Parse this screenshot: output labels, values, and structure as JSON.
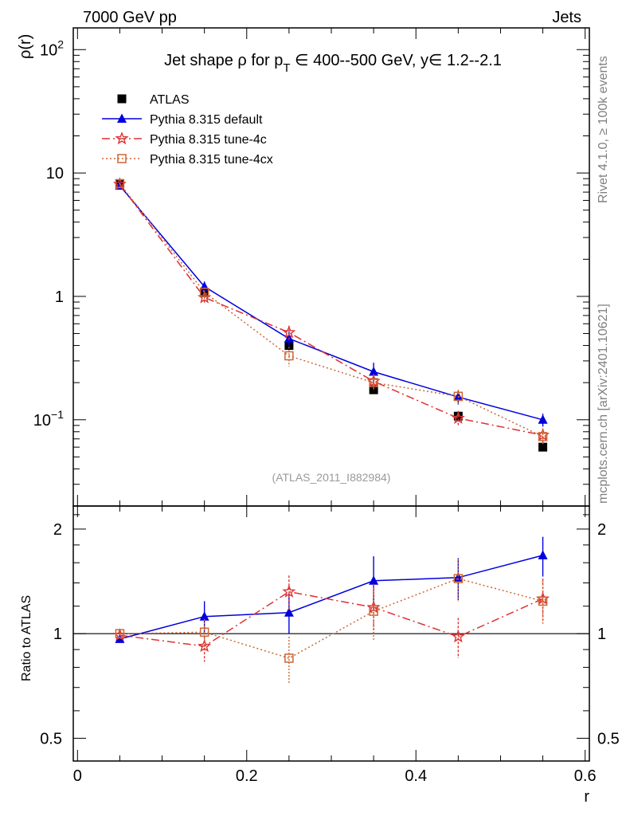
{
  "header": {
    "left": "7000 GeV pp",
    "right": "Jets"
  },
  "title": {
    "prefix": "Jet shape ρ for p",
    "sub": "T",
    "suffix": " ∈ 400--500 GeV, y∈ 1.2--2.1"
  },
  "side_labels": {
    "rivet": "Rivet 4.1.0, ≥ 100k events",
    "mcplots": "mcplots.cern.ch [arXiv:2401.10621]"
  },
  "analysis_ref": "(ATLAS_2011_I882984)",
  "colors": {
    "atlas": "#000000",
    "default": "#0000dd",
    "tune4c": "#dd3333",
    "tune4cx": "#cc6633"
  },
  "chart_data": [
    {
      "panel": "main",
      "type": "line",
      "scale": "log",
      "ylabel": "ρ(r)",
      "ylim": [
        0.02,
        150
      ],
      "yticks": [
        {
          "value": 100,
          "base": "10",
          "exp": "2"
        },
        {
          "value": 10,
          "base": "10",
          "exp": ""
        },
        {
          "value": 1,
          "base": "1",
          "exp": ""
        },
        {
          "value": 0.1,
          "base": "10",
          "exp": "−1"
        }
      ],
      "xlim": [
        -0.005,
        0.605
      ],
      "x": [
        0.05,
        0.15,
        0.25,
        0.35,
        0.45,
        0.55
      ],
      "series": [
        {
          "key": "atlas",
          "name": "ATLAS",
          "marker": "square",
          "values": [
            8.2,
            1.07,
            0.4,
            0.175,
            0.107,
            0.06
          ],
          "err": [
            0.25,
            0.05,
            0.02,
            0.01,
            0.008,
            0.004
          ]
        },
        {
          "key": "default",
          "name": "Pythia 8.315 default",
          "marker": "triangle",
          "values": [
            7.9,
            1.2,
            0.455,
            0.245,
            0.153,
            0.1
          ],
          "err": [
            0.2,
            0.12,
            0.06,
            0.045,
            0.02,
            0.012
          ]
        },
        {
          "key": "tune4c",
          "name": "Pythia 8.315 tune-4c",
          "marker": "star",
          "values": [
            8.1,
            0.98,
            0.51,
            0.205,
            0.103,
            0.075
          ],
          "err": [
            0.2,
            0.1,
            0.07,
            0.03,
            0.015,
            0.01
          ]
        },
        {
          "key": "tune4cx",
          "name": "Pythia 8.315 tune-4cx",
          "marker": "open-square",
          "values": [
            8.2,
            1.08,
            0.33,
            0.2,
            0.155,
            0.073
          ],
          "err": [
            0.2,
            0.1,
            0.06,
            0.03,
            0.02,
            0.01
          ]
        }
      ]
    },
    {
      "panel": "ratio",
      "type": "line",
      "scale": "log",
      "ylabel": "Ratio to ATLAS",
      "xlabel": "r",
      "ylim": [
        0.43,
        2.33
      ],
      "yticks": [
        {
          "value": 2,
          "label": "2"
        },
        {
          "value": 1,
          "label": "1"
        },
        {
          "value": 0.5,
          "label": "0.5"
        }
      ],
      "xticks": [
        {
          "value": 0,
          "label": "0"
        },
        {
          "value": 0.2,
          "label": "0.2"
        },
        {
          "value": 0.4,
          "label": "0.4"
        },
        {
          "value": 0.6,
          "label": "0.6"
        }
      ],
      "xlim": [
        -0.005,
        0.605
      ],
      "x": [
        0.05,
        0.15,
        0.25,
        0.35,
        0.45,
        0.55
      ],
      "series": [
        {
          "key": "default",
          "name": "Pythia 8.315 default",
          "marker": "triangle",
          "values": [
            0.965,
            1.12,
            1.15,
            1.42,
            1.45,
            1.68
          ],
          "err": [
            0.02,
            0.12,
            0.15,
            0.25,
            0.2,
            0.22
          ]
        },
        {
          "key": "tune4c",
          "name": "Pythia 8.315 tune-4c",
          "marker": "star",
          "values": [
            0.99,
            0.92,
            1.32,
            1.19,
            0.98,
            1.26
          ],
          "err": [
            0.02,
            0.09,
            0.15,
            0.2,
            0.13,
            0.18
          ]
        },
        {
          "key": "tune4cx",
          "name": "Pythia 8.315 tune-4cx",
          "marker": "open-square",
          "values": [
            1.0,
            1.01,
            0.85,
            1.16,
            1.44,
            1.24
          ],
          "err": [
            0.02,
            0.09,
            0.13,
            0.2,
            0.2,
            0.18
          ]
        }
      ]
    }
  ]
}
